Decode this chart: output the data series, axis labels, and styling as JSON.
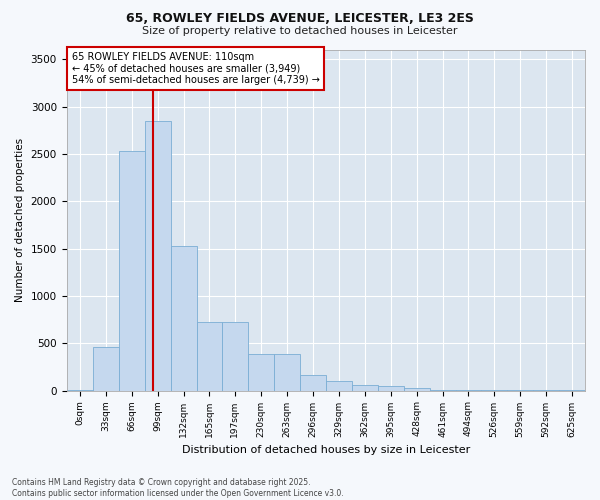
{
  "title1": "65, ROWLEY FIELDS AVENUE, LEICESTER, LE3 2ES",
  "title2": "Size of property relative to detached houses in Leicester",
  "xlabel": "Distribution of detached houses by size in Leicester",
  "ylabel": "Number of detached properties",
  "bar_color": "#c5d8ee",
  "bar_edge_color": "#7aadd4",
  "plot_bg_color": "#dce6f0",
  "fig_bg_color": "#f5f8fc",
  "grid_color": "#ffffff",
  "annotation_box_edge": "#cc0000",
  "property_line_color": "#cc0000",
  "annotation_line1": "65 ROWLEY FIELDS AVENUE: 110sqm",
  "annotation_line2": "← 45% of detached houses are smaller (3,949)",
  "annotation_line3": "54% of semi-detached houses are larger (4,739) →",
  "property_size": 110,
  "bin_edges": [
    0,
    33,
    66,
    99,
    132,
    165,
    197,
    230,
    263,
    296,
    329,
    362,
    395,
    428,
    461,
    494,
    526,
    559,
    592,
    625,
    658
  ],
  "bar_heights": [
    5,
    460,
    2530,
    2850,
    1530,
    730,
    730,
    390,
    390,
    160,
    100,
    55,
    50,
    30,
    10,
    5,
    5,
    5,
    2,
    2
  ],
  "ylim": [
    0,
    3600
  ],
  "yticks": [
    0,
    500,
    1000,
    1500,
    2000,
    2500,
    3000,
    3500
  ],
  "footnote": "Contains HM Land Registry data © Crown copyright and database right 2025.\nContains public sector information licensed under the Open Government Licence v3.0."
}
